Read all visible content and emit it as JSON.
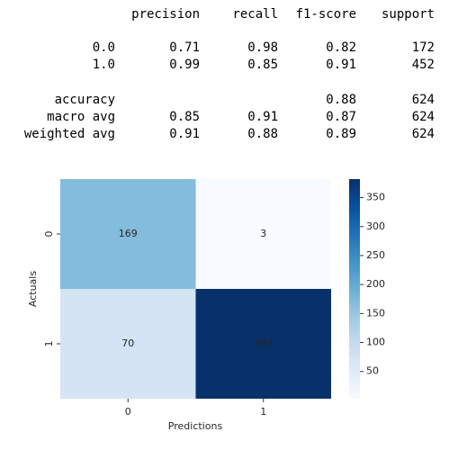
{
  "report": {
    "columns": [
      "precision",
      "recall",
      "f1-score",
      "support"
    ],
    "rows": [
      {
        "label": "0.0",
        "precision": "0.71",
        "recall": "0.98",
        "f1-score": "0.82",
        "support": "172"
      },
      {
        "label": "1.0",
        "precision": "0.99",
        "recall": "0.85",
        "f1-score": "0.91",
        "support": "452"
      },
      {
        "label": "accuracy",
        "f1-score": "0.88",
        "support": "624"
      },
      {
        "label": "macro avg",
        "precision": "0.85",
        "recall": "0.91",
        "f1-score": "0.87",
        "support": "624"
      },
      {
        "label": "weighted avg",
        "precision": "0.91",
        "recall": "0.88",
        "f1-score": "0.89",
        "support": "624"
      }
    ]
  },
  "chart_data": {
    "type": "heatmap",
    "x": [
      "0",
      "1"
    ],
    "y": [
      "0",
      "1"
    ],
    "values": [
      [
        169,
        3
      ],
      [
        70,
        382
      ]
    ],
    "xlabel": "Predictions",
    "ylabel": "Actuals",
    "colormap": "Blues",
    "clim": [
      3,
      382
    ],
    "colorbar_ticks": [
      50,
      100,
      150,
      200,
      250,
      300,
      350
    ]
  }
}
